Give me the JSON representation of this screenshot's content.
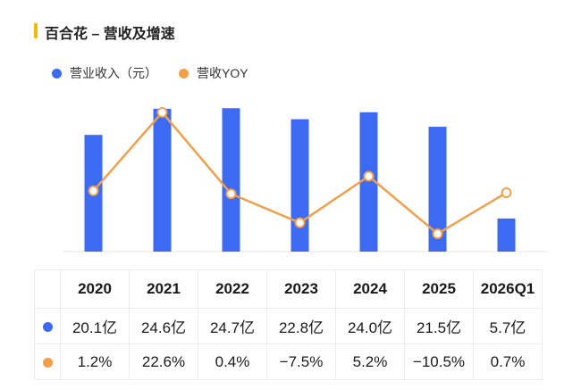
{
  "title": "百合花 – 营收及增速",
  "colors": {
    "accent": "#f5b800",
    "bar": "#3d6af2",
    "line": "#f0a04b"
  },
  "legend": [
    {
      "label": "营业收入（元）",
      "color": "#3d6af2"
    },
    {
      "label": "营收YOY",
      "color": "#f0a04b"
    }
  ],
  "table": {
    "headers": [
      "2020",
      "2021",
      "2022",
      "2023",
      "2024",
      "2025",
      "2026Q1"
    ],
    "revenue_row": [
      "20.1亿",
      "24.6亿",
      "24.7亿",
      "22.8亿",
      "24.0亿",
      "21.5亿",
      "5.7亿"
    ],
    "yoy_row": [
      "1.2%",
      "22.6%",
      "0.4%",
      "−7.5%",
      "5.2%",
      "−10.5%",
      "0.7%"
    ]
  },
  "chart_data": {
    "type": "bar",
    "categories": [
      "2020",
      "2021",
      "2022",
      "2023",
      "2024",
      "2025",
      "2026Q1"
    ],
    "series": [
      {
        "name": "营业收入（元）",
        "type": "bar",
        "unit": "亿",
        "values": [
          20.1,
          24.6,
          24.7,
          22.8,
          24.0,
          21.5,
          5.7
        ]
      },
      {
        "name": "营收YOY",
        "type": "line",
        "unit": "%",
        "values": [
          1.2,
          22.6,
          0.4,
          -7.5,
          5.2,
          -10.5,
          0.7
        ]
      }
    ],
    "legend_position": "top-left",
    "grid": false,
    "axes_visible": false
  }
}
